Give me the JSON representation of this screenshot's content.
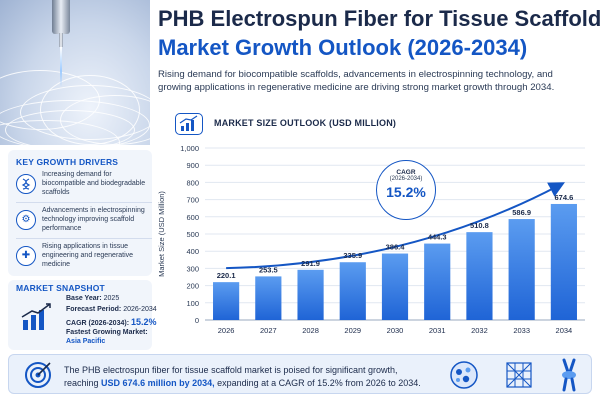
{
  "header": {
    "title_line1": "PHB Electrospun Fiber for Tissue Scaffold",
    "title_line2": "Market Growth Outlook (2026-2034)",
    "subtitle": "Rising demand for biocompatible scaffolds, advancements in electrospinning technology, and growing applications in regenerative medicine are driving strong market growth through 2034."
  },
  "growth_drivers": {
    "heading": "KEY GROWTH DRIVERS",
    "items": [
      {
        "icon": "dna-icon",
        "text": "Increasing demand for biocompatible and biodegradable scaffolds"
      },
      {
        "icon": "gear-icon",
        "text": "Advancements in electrospinning technology improving scaffold performance"
      },
      {
        "icon": "medical-cross-icon",
        "text": "Rising applications in tissue engineering and regenerative medicine"
      }
    ]
  },
  "snapshot": {
    "heading": "MARKET SNAPSHOT",
    "base_year_label": "Base Year:",
    "base_year": "2025",
    "forecast_label": "Forecast Period:",
    "forecast": "2026-2034",
    "cagr_label": "CAGR (2026-2034):",
    "cagr": "15.2%",
    "fastest_label": "Fastest Growing Market:",
    "fastest": "Asia Pacific"
  },
  "outlook": {
    "heading": "MARKET SIZE OUTLOOK (USD MILLION)"
  },
  "cagr_callout": {
    "line1": "CAGR",
    "line2": "(2026-2034)",
    "value": "15.2%"
  },
  "footer": {
    "text_before": "The PHB electrospun fiber for tissue scaffold market is poised for significant growth, reaching",
    "highlight": "USD 674.6 million by 2034,",
    "text_after": "expanding at a CAGR of 15.2% from 2026 to 2034."
  },
  "colors": {
    "accent": "#1456c4",
    "bar_top": "#5b9cf0",
    "bar_bottom": "#1f64d6",
    "dark_text": "#1b2a4a"
  },
  "chart_data": {
    "type": "bar",
    "categories": [
      "2026",
      "2027",
      "2028",
      "2029",
      "2030",
      "2031",
      "2032",
      "2033",
      "2034"
    ],
    "values": [
      220.1,
      253.5,
      291.9,
      335.9,
      386.4,
      444.3,
      510.8,
      586.9,
      674.6
    ],
    "value_labels": [
      "220.1",
      "253.5",
      "291.9",
      "335.9",
      "386.4",
      "444.3",
      "510.8",
      "586.9",
      "674.6"
    ],
    "ylabel": "Market Size (USD Million)",
    "xlabel": "",
    "ylim": [
      0,
      1000
    ],
    "yticks": [
      "0",
      "100",
      "200",
      "300",
      "400",
      "500",
      "600",
      "700",
      "800",
      "900",
      "1,000"
    ],
    "grid": true,
    "trend_arrow": true
  }
}
